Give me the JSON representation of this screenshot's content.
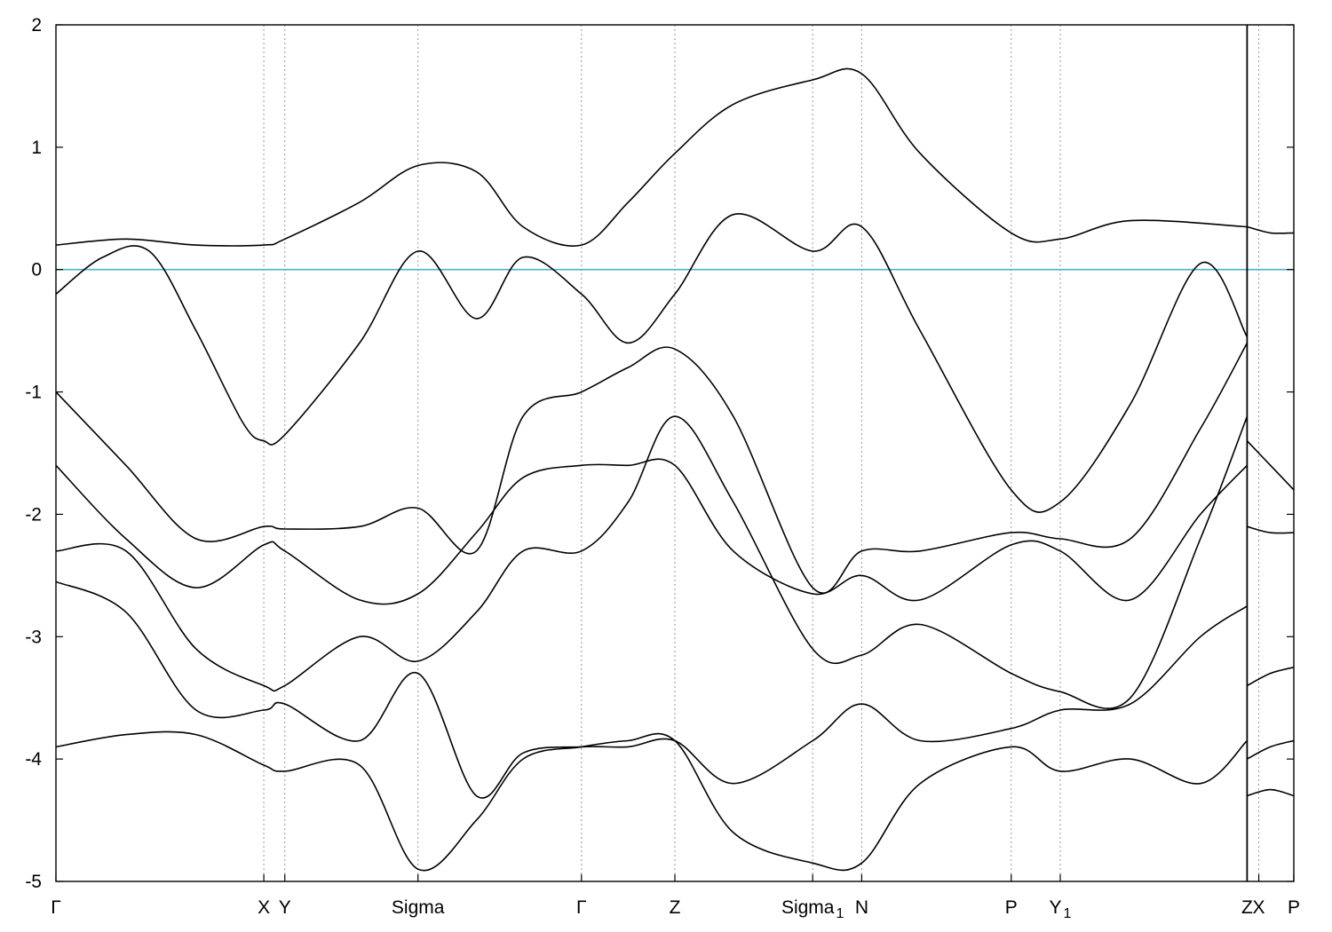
{
  "chart_data": {
    "type": "line",
    "title": "",
    "xlabel": "",
    "ylabel": "",
    "ylim": [
      -5,
      2
    ],
    "yticks": [
      2,
      1,
      0,
      -1,
      -2,
      -3,
      -4,
      -5
    ],
    "grid": "vertical dashed at high-symmetry points",
    "reference_line": {
      "y": 0,
      "color": "#4fb3c8"
    },
    "colors": {
      "bands": "#000000",
      "fermi": "#4fb3c8",
      "gridlines": "#999999"
    },
    "xlim": [
      0,
      5.3
    ],
    "segments": [
      {
        "x": [
          0,
          5.1
        ]
      },
      {
        "x": [
          5.1,
          5.3
        ]
      }
    ],
    "high_symmetry_points": [
      {
        "x": 0.0,
        "label": "Γ",
        "sub": ""
      },
      {
        "x": 0.89,
        "label": "X",
        "sub": ""
      },
      {
        "x": 0.98,
        "label": "Y",
        "sub": ""
      },
      {
        "x": 1.55,
        "label": "Sigma",
        "sub": ""
      },
      {
        "x": 2.25,
        "label": "Γ",
        "sub": ""
      },
      {
        "x": 2.65,
        "label": "Z",
        "sub": ""
      },
      {
        "x": 3.24,
        "label": "Sigma",
        "sub": "1"
      },
      {
        "x": 3.45,
        "label": "N",
        "sub": ""
      },
      {
        "x": 4.09,
        "label": "P",
        "sub": ""
      },
      {
        "x": 4.3,
        "label": "Y",
        "sub": "1"
      },
      {
        "x": 5.1,
        "label": "Z",
        "sub": ""
      },
      {
        "x": 5.15,
        "label": "X",
        "sub": ""
      },
      {
        "x": 5.3,
        "label": "P",
        "sub": ""
      }
    ],
    "series": [
      {
        "x": [
          0,
          0.3,
          0.6,
          0.89,
          0.98,
          1.3,
          1.55,
          1.8,
          2.0,
          2.25,
          2.45,
          2.65,
          2.9,
          3.24,
          3.45,
          3.7,
          4.09,
          4.3,
          4.6,
          5.1
        ],
        "y": [
          0.2,
          0.25,
          0.2,
          0.2,
          0.25,
          0.55,
          0.85,
          0.8,
          0.35,
          0.2,
          0.55,
          0.95,
          1.35,
          1.55,
          1.6,
          0.95,
          0.3,
          0.25,
          0.4,
          0.35
        ]
      },
      {
        "x": [
          0,
          0.2,
          0.4,
          0.6,
          0.8,
          0.89,
          0.98,
          1.3,
          1.55,
          1.8,
          2.0,
          2.25,
          2.45,
          2.65,
          2.9,
          3.24,
          3.45,
          3.7,
          4.09,
          4.3,
          4.6,
          4.9,
          5.1
        ],
        "y": [
          -0.2,
          0.1,
          0.15,
          -0.5,
          -1.25,
          -1.4,
          -1.35,
          -0.6,
          0.15,
          -0.4,
          0.1,
          -0.2,
          -0.6,
          -0.2,
          0.45,
          0.15,
          0.35,
          -0.5,
          -1.8,
          -1.9,
          -1.1,
          0.05,
          -0.55
        ]
      },
      {
        "x": [
          0,
          0.3,
          0.6,
          0.89,
          0.98,
          1.3,
          1.55,
          1.8,
          2.0,
          2.25,
          2.45,
          2.65,
          2.9,
          3.24,
          3.45,
          3.7,
          4.09,
          4.3,
          4.6,
          4.9,
          5.1
        ],
        "y": [
          -1.0,
          -1.6,
          -2.2,
          -2.1,
          -2.12,
          -2.1,
          -1.95,
          -2.3,
          -1.2,
          -1.0,
          -0.8,
          -0.65,
          -1.2,
          -2.6,
          -2.3,
          -2.3,
          -2.15,
          -2.2,
          -2.2,
          -1.3,
          -0.6
        ]
      },
      {
        "x": [
          0,
          0.3,
          0.6,
          0.89,
          0.98,
          1.3,
          1.55,
          1.8,
          2.0,
          2.25,
          2.45,
          2.65,
          2.9,
          3.24,
          3.45,
          3.7,
          4.09,
          4.3,
          4.6,
          4.9,
          5.1
        ],
        "y": [
          -1.6,
          -2.2,
          -2.6,
          -2.25,
          -2.3,
          -2.7,
          -2.65,
          -2.15,
          -1.7,
          -1.6,
          -1.6,
          -1.6,
          -2.3,
          -2.65,
          -2.5,
          -2.7,
          -2.25,
          -2.3,
          -2.7,
          -2.0,
          -1.6
        ]
      },
      {
        "x": [
          0,
          0.3,
          0.6,
          0.89,
          0.98,
          1.3,
          1.55,
          1.8,
          2.0,
          2.25,
          2.45,
          2.65,
          2.9,
          3.24,
          3.45,
          3.7,
          4.09,
          4.3,
          4.6,
          4.9,
          5.1
        ],
        "y": [
          -2.3,
          -2.3,
          -3.1,
          -3.4,
          -3.4,
          -3.0,
          -3.2,
          -2.8,
          -2.3,
          -2.3,
          -1.9,
          -1.2,
          -1.9,
          -3.1,
          -3.15,
          -2.9,
          -3.3,
          -3.45,
          -3.5,
          -2.2,
          -1.2
        ]
      },
      {
        "x": [
          0,
          0.3,
          0.6,
          0.89,
          0.98,
          1.3,
          1.55,
          1.8,
          2.0,
          2.25,
          2.45,
          2.65,
          2.9,
          3.24,
          3.45,
          3.7,
          4.09,
          4.3,
          4.6,
          4.9,
          5.1
        ],
        "y": [
          -2.55,
          -2.8,
          -3.6,
          -3.6,
          -3.55,
          -3.85,
          -3.3,
          -4.3,
          -3.95,
          -3.9,
          -3.9,
          -3.85,
          -4.2,
          -3.85,
          -3.55,
          -3.85,
          -3.75,
          -3.6,
          -3.55,
          -3.0,
          -2.75
        ]
      },
      {
        "x": [
          0,
          0.3,
          0.6,
          0.89,
          0.98,
          1.3,
          1.55,
          1.8,
          2.0,
          2.25,
          2.45,
          2.65,
          2.9,
          3.24,
          3.45,
          3.7,
          4.09,
          4.3,
          4.6,
          4.9,
          5.1
        ],
        "y": [
          -3.9,
          -3.8,
          -3.8,
          -4.05,
          -4.1,
          -4.05,
          -4.9,
          -4.5,
          -4.0,
          -3.9,
          -3.85,
          -3.85,
          -4.6,
          -4.85,
          -4.85,
          -4.2,
          -3.9,
          -4.1,
          -4.0,
          -4.2,
          -3.85
        ]
      }
    ],
    "segment2_series": [
      {
        "x": [
          5.1,
          5.2,
          5.3
        ],
        "y": [
          0.35,
          0.3,
          0.3
        ]
      },
      {
        "x": [
          5.1,
          5.2,
          5.3
        ],
        "y": [
          -1.4,
          -1.6,
          -1.8
        ]
      },
      {
        "x": [
          5.1,
          5.2,
          5.3
        ],
        "y": [
          -2.1,
          -2.15,
          -2.15
        ]
      },
      {
        "x": [
          5.1,
          5.2,
          5.3
        ],
        "y": [
          -3.4,
          -3.3,
          -3.25
        ]
      },
      {
        "x": [
          5.1,
          5.2,
          5.3
        ],
        "y": [
          -4.0,
          -3.9,
          -3.85
        ]
      },
      {
        "x": [
          5.1,
          5.2,
          5.3
        ],
        "y": [
          -4.3,
          -4.25,
          -4.3
        ]
      }
    ]
  }
}
